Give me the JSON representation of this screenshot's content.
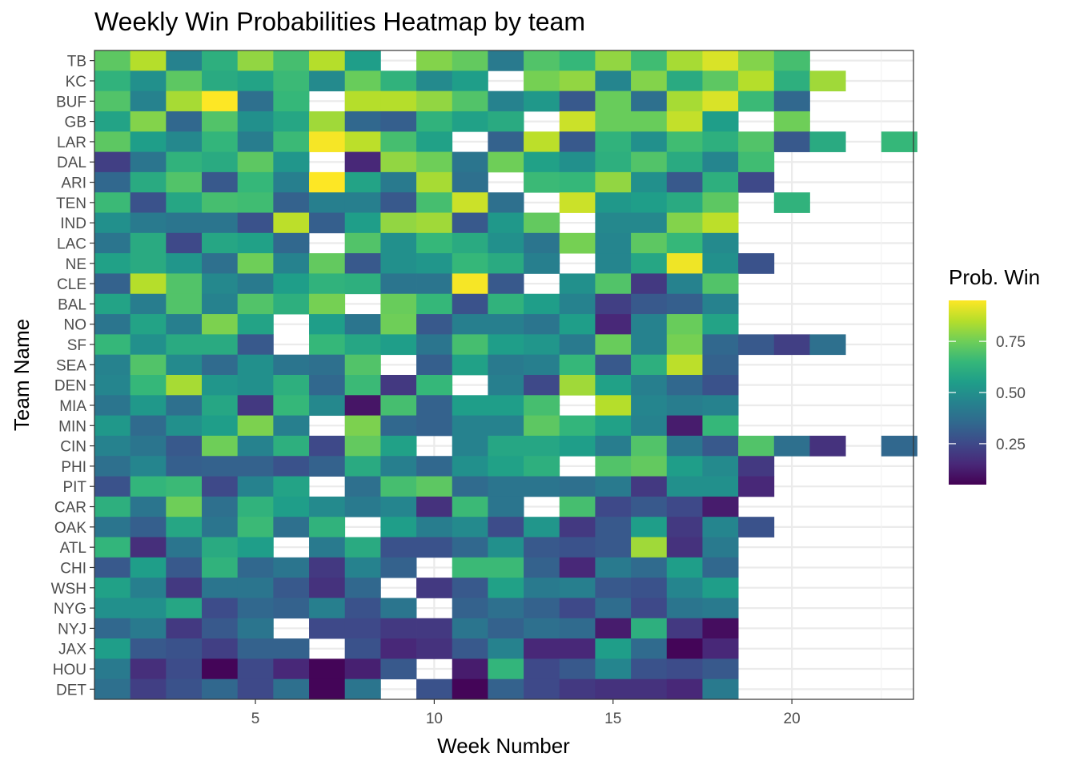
{
  "chart_data": {
    "type": "heatmap",
    "title": "Weekly Win Probabilities Heatmap by team",
    "xlabel": "Week Number",
    "ylabel": "Team Name",
    "x_ticks": [
      5,
      10,
      15,
      20
    ],
    "xlim": [
      0.5,
      23.4
    ],
    "grid": true,
    "legend": {
      "title": "Prob. Win",
      "position": "right",
      "ticks": [
        0.25,
        0.5,
        0.75
      ],
      "range": [
        0.05,
        0.95
      ],
      "colormap": "viridis"
    },
    "teams": [
      "TB",
      "KC",
      "BUF",
      "GB",
      "LAR",
      "DAL",
      "ARI",
      "TEN",
      "IND",
      "LAC",
      "NE",
      "CLE",
      "BAL",
      "NO",
      "SF",
      "SEA",
      "DEN",
      "MIA",
      "MIN",
      "CIN",
      "PHI",
      "PIT",
      "CAR",
      "OAK",
      "ATL",
      "CHI",
      "WSH",
      "NYG",
      "NYJ",
      "JAX",
      "HOU",
      "DET"
    ],
    "weeks": [
      1,
      2,
      3,
      4,
      5,
      6,
      7,
      8,
      9,
      10,
      11,
      12,
      13,
      14,
      15,
      16,
      17,
      18,
      19,
      20,
      21,
      22,
      23
    ],
    "values": [
      [
        0.72,
        0.85,
        0.45,
        0.62,
        0.8,
        0.68,
        0.85,
        0.55,
        null,
        0.78,
        0.73,
        0.42,
        0.7,
        0.65,
        0.8,
        0.67,
        0.83,
        0.9,
        0.78,
        0.68,
        null,
        null,
        null
      ],
      [
        0.63,
        0.5,
        0.72,
        0.6,
        0.57,
        0.66,
        0.48,
        0.74,
        0.63,
        0.48,
        0.55,
        null,
        0.76,
        0.8,
        0.46,
        0.78,
        0.6,
        0.72,
        0.85,
        0.62,
        0.82,
        null,
        null
      ],
      [
        0.7,
        0.45,
        0.83,
        0.95,
        0.38,
        0.65,
        null,
        0.85,
        0.85,
        0.8,
        0.7,
        0.45,
        0.53,
        0.3,
        0.74,
        0.38,
        0.83,
        0.9,
        0.66,
        0.35,
        null,
        null,
        null
      ],
      [
        0.57,
        0.78,
        0.35,
        0.7,
        0.5,
        0.58,
        0.82,
        0.35,
        0.32,
        0.63,
        0.56,
        0.6,
        null,
        0.88,
        0.74,
        0.74,
        0.87,
        0.55,
        null,
        0.75,
        null,
        null,
        null
      ],
      [
        0.72,
        0.55,
        0.47,
        0.64,
        0.43,
        0.66,
        0.94,
        0.86,
        0.68,
        0.56,
        null,
        0.33,
        0.86,
        0.3,
        0.63,
        0.5,
        0.67,
        0.62,
        0.7,
        0.3,
        0.6,
        null,
        0.65
      ],
      [
        0.22,
        0.4,
        0.63,
        0.6,
        0.72,
        0.52,
        null,
        0.15,
        0.8,
        0.75,
        0.4,
        0.75,
        0.56,
        0.5,
        0.62,
        0.7,
        0.6,
        0.46,
        0.67,
        null,
        null,
        null,
        null
      ],
      [
        0.35,
        0.6,
        0.7,
        0.3,
        0.65,
        0.44,
        0.95,
        0.57,
        0.42,
        0.83,
        0.38,
        null,
        0.66,
        0.65,
        0.8,
        0.5,
        0.3,
        0.62,
        0.25,
        null,
        null,
        null,
        null
      ],
      [
        0.66,
        0.28,
        0.58,
        0.68,
        0.67,
        0.33,
        0.44,
        0.44,
        0.3,
        0.68,
        0.88,
        0.38,
        null,
        0.88,
        0.53,
        0.55,
        0.6,
        0.72,
        null,
        0.63,
        null,
        null,
        null
      ],
      [
        0.5,
        0.42,
        0.4,
        0.4,
        0.28,
        0.86,
        0.32,
        0.55,
        0.8,
        0.82,
        0.3,
        0.53,
        0.73,
        null,
        0.47,
        0.47,
        0.78,
        0.86,
        null,
        null,
        null,
        null,
        null
      ],
      [
        0.4,
        0.6,
        0.25,
        0.58,
        0.56,
        0.35,
        null,
        0.7,
        0.5,
        0.65,
        0.6,
        0.5,
        0.4,
        0.76,
        0.46,
        0.72,
        0.65,
        0.48,
        null,
        null,
        null,
        null,
        null
      ],
      [
        0.56,
        0.6,
        0.52,
        0.38,
        0.75,
        0.45,
        0.73,
        0.3,
        0.5,
        0.52,
        0.65,
        0.6,
        0.44,
        null,
        0.46,
        0.58,
        0.93,
        0.5,
        0.28,
        null,
        null,
        null,
        null
      ],
      [
        0.33,
        0.85,
        0.7,
        0.47,
        0.42,
        0.55,
        0.63,
        0.62,
        0.4,
        0.4,
        0.94,
        0.3,
        null,
        0.5,
        0.7,
        0.2,
        0.45,
        0.7,
        null,
        null,
        null,
        null,
        null
      ],
      [
        0.57,
        0.43,
        0.7,
        0.45,
        0.7,
        0.62,
        0.76,
        null,
        0.74,
        0.65,
        0.28,
        0.63,
        0.55,
        0.45,
        0.22,
        0.3,
        0.32,
        0.45,
        null,
        null,
        null,
        null,
        null
      ],
      [
        0.4,
        0.57,
        0.44,
        0.77,
        0.57,
        null,
        0.55,
        0.4,
        0.75,
        0.3,
        0.44,
        0.44,
        0.4,
        0.55,
        0.15,
        0.45,
        0.74,
        0.57,
        null,
        null,
        null,
        null,
        null
      ],
      [
        0.65,
        0.5,
        0.6,
        0.6,
        0.3,
        null,
        0.65,
        0.58,
        0.55,
        0.4,
        0.68,
        0.55,
        0.52,
        0.42,
        0.74,
        0.45,
        0.76,
        0.35,
        0.3,
        0.22,
        0.38,
        null,
        null
      ],
      [
        0.45,
        0.7,
        0.48,
        0.36,
        0.5,
        0.4,
        0.38,
        0.7,
        null,
        0.32,
        0.56,
        0.42,
        0.44,
        0.65,
        0.3,
        0.62,
        0.86,
        0.33,
        null,
        null,
        null,
        null,
        null
      ],
      [
        0.46,
        0.65,
        0.83,
        0.52,
        0.5,
        0.62,
        0.35,
        0.66,
        0.2,
        0.65,
        null,
        0.44,
        0.25,
        0.82,
        0.56,
        0.44,
        0.35,
        0.28,
        null,
        null,
        null,
        null,
        null
      ],
      [
        0.4,
        0.53,
        0.38,
        0.58,
        0.2,
        0.65,
        0.47,
        0.1,
        0.68,
        0.33,
        0.55,
        0.55,
        0.68,
        null,
        0.85,
        0.46,
        0.43,
        0.45,
        null,
        null,
        null,
        null,
        null
      ],
      [
        0.53,
        0.36,
        0.5,
        0.55,
        0.77,
        0.44,
        null,
        0.77,
        0.35,
        0.33,
        0.45,
        0.45,
        0.72,
        0.64,
        0.56,
        0.45,
        0.12,
        0.65,
        null,
        null,
        null,
        null,
        null
      ],
      [
        0.45,
        0.4,
        0.3,
        0.75,
        0.45,
        0.62,
        0.25,
        0.73,
        0.56,
        null,
        0.45,
        0.58,
        0.58,
        0.55,
        0.43,
        0.7,
        0.4,
        0.3,
        0.7,
        0.38,
        0.18,
        null,
        0.35
      ],
      [
        0.38,
        0.46,
        0.32,
        0.33,
        0.33,
        0.28,
        0.33,
        0.6,
        0.44,
        0.35,
        0.5,
        0.56,
        0.62,
        null,
        0.7,
        0.73,
        0.55,
        0.48,
        0.2,
        null,
        null,
        null,
        null
      ],
      [
        0.28,
        0.64,
        0.66,
        0.25,
        0.45,
        0.57,
        null,
        0.38,
        0.68,
        0.72,
        0.36,
        0.4,
        0.4,
        0.38,
        0.42,
        0.2,
        0.5,
        0.5,
        0.15,
        null,
        null,
        null,
        null
      ],
      [
        0.62,
        0.4,
        0.75,
        0.38,
        0.63,
        0.55,
        0.48,
        0.42,
        0.46,
        0.18,
        0.66,
        0.4,
        null,
        0.68,
        0.25,
        0.3,
        0.25,
        0.12,
        null,
        null,
        null,
        null,
        null
      ],
      [
        0.4,
        0.32,
        0.58,
        0.4,
        0.66,
        0.38,
        0.63,
        null,
        0.55,
        0.43,
        0.48,
        0.26,
        0.52,
        0.2,
        0.3,
        0.55,
        0.2,
        0.46,
        0.28,
        null,
        null,
        null,
        null
      ],
      [
        0.64,
        0.17,
        0.4,
        0.6,
        0.55,
        null,
        0.42,
        0.6,
        0.28,
        0.28,
        0.35,
        0.5,
        0.3,
        0.28,
        0.3,
        0.82,
        0.18,
        0.42,
        null,
        null,
        null,
        null,
        null
      ],
      [
        0.3,
        0.55,
        0.3,
        0.63,
        0.35,
        0.4,
        0.2,
        0.45,
        0.33,
        null,
        0.66,
        0.66,
        0.33,
        0.15,
        0.42,
        0.36,
        0.55,
        0.35,
        null,
        null,
        null,
        null,
        null
      ],
      [
        0.56,
        0.44,
        0.2,
        0.4,
        0.4,
        0.3,
        0.18,
        0.35,
        null,
        0.2,
        0.3,
        0.56,
        0.42,
        0.44,
        0.3,
        0.28,
        0.46,
        0.55,
        null,
        null,
        null,
        null,
        null
      ],
      [
        0.5,
        0.5,
        0.58,
        0.26,
        0.35,
        0.33,
        0.44,
        0.28,
        0.4,
        null,
        0.33,
        0.38,
        0.33,
        0.25,
        0.37,
        0.25,
        0.4,
        0.42,
        null,
        null,
        null,
        null,
        null
      ],
      [
        0.35,
        0.42,
        0.2,
        0.3,
        0.4,
        null,
        0.25,
        0.25,
        0.2,
        0.2,
        0.4,
        0.33,
        0.38,
        0.36,
        0.12,
        0.62,
        0.2,
        0.08,
        null,
        null,
        null,
        null,
        null
      ],
      [
        0.55,
        0.3,
        0.28,
        0.22,
        0.33,
        0.33,
        null,
        0.28,
        0.15,
        0.18,
        0.3,
        0.45,
        0.15,
        0.15,
        0.55,
        0.36,
        0.06,
        0.15,
        null,
        null,
        null,
        null,
        null
      ],
      [
        0.42,
        0.17,
        0.26,
        0.06,
        0.25,
        0.15,
        0.06,
        0.13,
        0.3,
        null,
        0.12,
        0.64,
        0.25,
        0.3,
        0.46,
        0.28,
        0.26,
        0.3,
        null,
        null,
        null,
        null,
        null
      ],
      [
        0.38,
        0.22,
        0.28,
        0.35,
        0.25,
        0.38,
        0.06,
        0.4,
        null,
        0.28,
        0.06,
        0.33,
        0.25,
        0.2,
        0.18,
        0.18,
        0.15,
        0.42,
        null,
        null,
        null,
        null,
        null
      ]
    ]
  }
}
